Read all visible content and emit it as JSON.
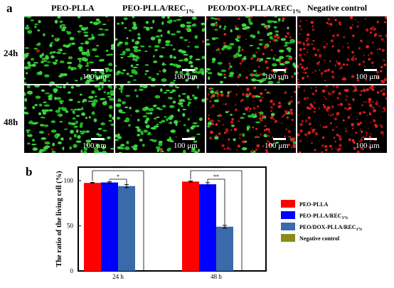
{
  "panel_a": {
    "letter": "a",
    "columns": [
      "PEO-PLLA",
      "PEO-PLLA/REC",
      "PEO/DOX-PLLA/REC",
      "Negative control"
    ],
    "column_subscripts": [
      "",
      "1%",
      "1%",
      ""
    ],
    "rows": [
      "24h",
      "48h"
    ],
    "scale_label": "100 μm",
    "image_tone": [
      [
        {
          "green": 0.9,
          "red": 0.02
        },
        {
          "green": 0.85,
          "red": 0.02
        },
        {
          "green": 0.7,
          "red": 0.3
        },
        {
          "green": 0.0,
          "red": 0.8
        }
      ],
      [
        {
          "green": 0.95,
          "red": 0.02
        },
        {
          "green": 0.8,
          "red": 0.02
        },
        {
          "green": 0.25,
          "red": 0.75
        },
        {
          "green": 0.0,
          "red": 0.95
        }
      ]
    ]
  },
  "panel_b": {
    "letter": "b",
    "legend": [
      "PEO-PLLA",
      "PEO-PLLA/REC",
      "PEO/DOX-PLLA/REC",
      "Negative control"
    ],
    "legend_subscripts": [
      "",
      "1%",
      "1%",
      ""
    ]
  },
  "chart_data": {
    "type": "bar",
    "ylabel": "The ratio of the living cell (%)",
    "xlabel": "",
    "categories": [
      "24 h",
      "48 h"
    ],
    "ylim": [
      0,
      115
    ],
    "yticks": [
      0,
      50,
      100
    ],
    "series": [
      {
        "name": "PEO-PLLA",
        "values": [
          97.5,
          99
        ],
        "errors": [
          0.6,
          0.6
        ],
        "color": "#ff0000"
      },
      {
        "name": "PEO-PLLA/REC1%",
        "values": [
          98,
          96
        ],
        "errors": [
          0.8,
          1.8
        ],
        "color": "#0000ff"
      },
      {
        "name": "PEO/DOX-PLLA/REC1%",
        "values": [
          94,
          49
        ],
        "errors": [
          1.8,
          1.6
        ],
        "color": "#3a6aaa"
      },
      {
        "name": "Negative control",
        "values": [
          0,
          0
        ],
        "errors": [
          0,
          0
        ],
        "color": "#8b8b1a"
      }
    ],
    "significance": [
      {
        "group": 0,
        "from_series": 0,
        "to_series": 3,
        "label": "****"
      },
      {
        "group": 0,
        "from_series": 1,
        "to_series": 2,
        "label": "*"
      },
      {
        "group": 1,
        "from_series": 0,
        "to_series": 3,
        "label": "****"
      },
      {
        "group": 1,
        "from_series": 1,
        "to_series": 2,
        "label": "**"
      }
    ]
  }
}
